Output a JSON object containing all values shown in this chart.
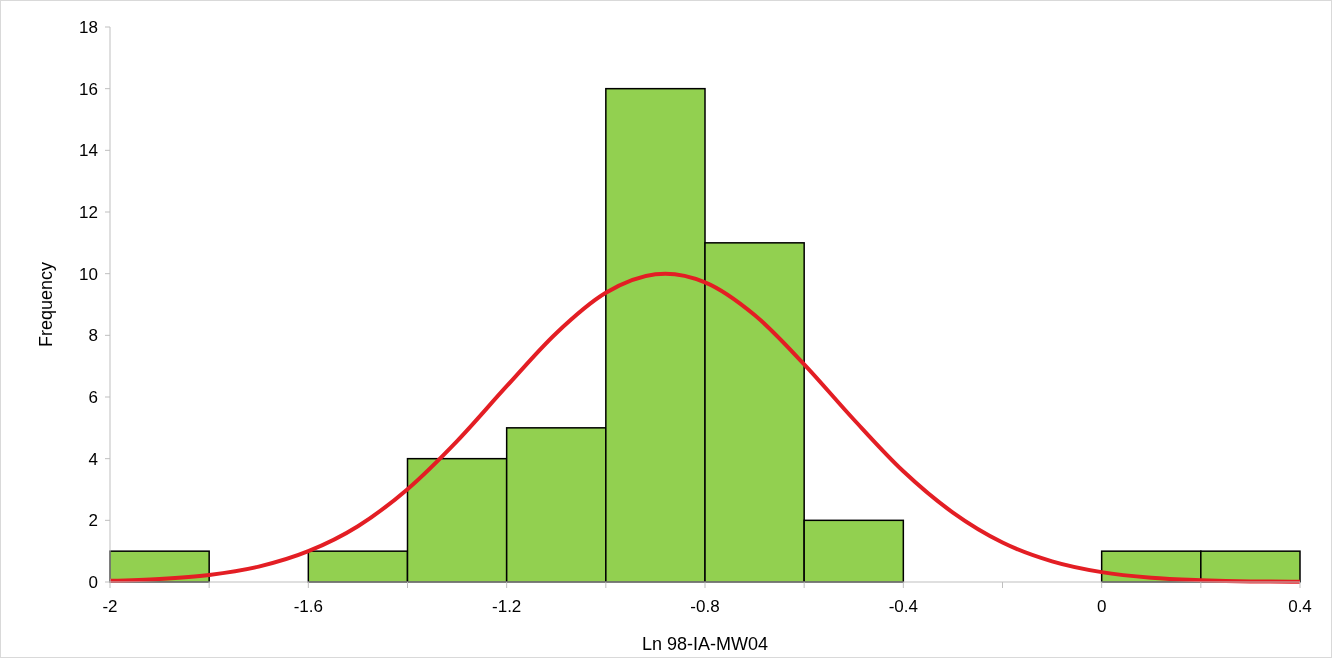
{
  "chart_data": {
    "type": "histogram",
    "xlabel": "Ln 98-IA-MW04",
    "ylabel": "Frequency",
    "bins": [
      -2,
      -1.8,
      -1.6,
      -1.4,
      -1.2,
      -1,
      -0.8,
      -0.6,
      -0.4,
      -0.2,
      0,
      0.2,
      0.4
    ],
    "values": [
      1,
      0,
      1,
      4,
      5,
      16,
      11,
      2,
      0,
      0,
      1,
      1
    ],
    "color": "#92d050",
    "series": [
      {
        "type": "line",
        "color": "#e31e24",
        "x": [
          -2,
          -1.9,
          -1.8,
          -1.7,
          -1.6,
          -1.5,
          -1.4,
          -1.3,
          -1.2,
          -1.1,
          -1,
          -0.9,
          -0.88,
          -0.8,
          -0.7,
          -0.6,
          -0.5,
          -0.4,
          -0.3,
          -0.2,
          -0.1,
          0,
          0.1,
          0.2,
          0.3,
          0.4
        ],
        "values": [
          0.04,
          0.1,
          0.23,
          0.5,
          1,
          1.81,
          3.01,
          4.57,
          6.35,
          8.07,
          9.38,
          9.98,
          10,
          9.72,
          8.66,
          7.06,
          5.27,
          3.59,
          2.25,
          1.28,
          0.67,
          0.32,
          0.14,
          0.06,
          0.02,
          0.01
        ]
      }
    ],
    "xlim": [
      -2,
      0.4
    ],
    "xticks": [
      -2,
      {
        "value": -1.8,
        "label": null
      },
      -1.6,
      {
        "value": -1.4,
        "label": null
      },
      -1.2,
      {
        "value": -1,
        "label": null
      },
      -0.8,
      {
        "value": -0.6,
        "label": null
      },
      -0.4,
      {
        "value": -0.2,
        "label": null
      },
      0,
      {
        "value": 0.2,
        "label": null
      },
      0.4
    ],
    "ylim": [
      0,
      18
    ],
    "yticks": [
      0,
      2,
      4,
      6,
      8,
      10,
      12,
      14,
      16,
      18
    ],
    "grid": false
  }
}
